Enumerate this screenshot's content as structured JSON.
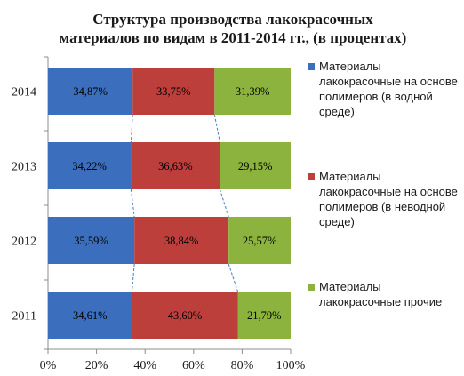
{
  "chart_data": {
    "type": "bar",
    "orientation": "horizontal",
    "stacked": "percent",
    "title": "Структура производства лакокрасочных материалов по видам в 2011-2014 гг., (в процентах)",
    "title_lines": [
      "Структура производства лакокрасочных",
      "материалов по видам в 2011-2014 гг., (в процентах)"
    ],
    "categories": [
      "2014",
      "2013",
      "2012",
      "2011"
    ],
    "series": [
      {
        "name": "Материалы лакокрасочные на основе полимеров (в водной среде)",
        "legend_lines": [
          "Материалы",
          "лакокрасочные на основе",
          "полимеров (в водной",
          "среде)"
        ],
        "color": "#3b6fbd",
        "values": [
          34.87,
          34.22,
          35.59,
          34.61
        ],
        "labels": [
          "34,87%",
          "34,22%",
          "35,59%",
          "34,61%"
        ]
      },
      {
        "name": "Материалы лакокрасочные на основе полимеров (в неводной среде)",
        "legend_lines": [
          "Материалы",
          "лакокрасочные на основе",
          "полимеров (в неводной",
          "среде)"
        ],
        "color": "#bd3f3b",
        "values": [
          33.75,
          36.63,
          38.84,
          43.6
        ],
        "labels": [
          "33,75%",
          "36,63%",
          "38,84%",
          "43,60%"
        ]
      },
      {
        "name": "Материалы лакокрасочные прочие",
        "legend_lines": [
          "Материалы",
          "лакокрасочные прочие"
        ],
        "color": "#8db33f",
        "values": [
          31.39,
          29.15,
          25.57,
          21.79
        ],
        "labels": [
          "31,39%",
          "29,15%",
          "25,57%",
          "21,79%"
        ]
      }
    ],
    "xlim": [
      0,
      100
    ],
    "x_ticks": [
      "0%",
      "20%",
      "40%",
      "60%",
      "80%",
      "100%"
    ],
    "series_lines": true,
    "grid": false,
    "legend_position": "right"
  }
}
